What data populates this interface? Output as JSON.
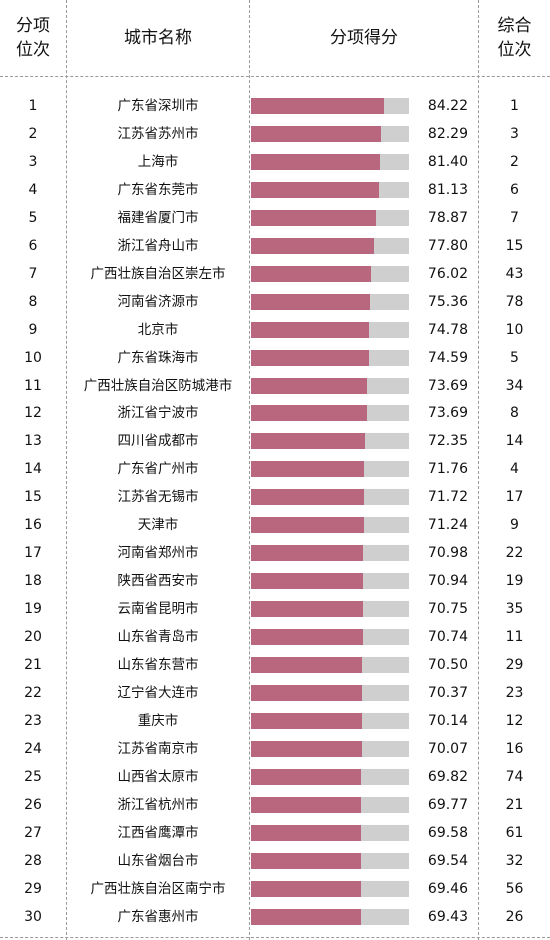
{
  "headers": {
    "rank": "分项\n位次",
    "city": "城市名称",
    "score": "分项得分",
    "composite": "综合\n位次"
  },
  "colors": {
    "bar": "#b8677f",
    "track": "#cfcfcf"
  },
  "chart_data": {
    "type": "bar",
    "orientation": "horizontal",
    "xlim": [
      0,
      100
    ],
    "grid": false,
    "categories": [
      "广东省深圳市",
      "江苏省苏州市",
      "上海市",
      "广东省东莞市",
      "福建省厦门市",
      "浙江省舟山市",
      "广西壮族自治区崇左市",
      "河南省济源市",
      "北京市",
      "广东省珠海市",
      "广西壮族自治区防城港市",
      "浙江省宁波市",
      "四川省成都市",
      "广东省广州市",
      "江苏省无锡市",
      "天津市",
      "河南省郑州市",
      "陕西省西安市",
      "云南省昆明市",
      "山东省青岛市",
      "山东省东营市",
      "辽宁省大连市",
      "重庆市",
      "江苏省南京市",
      "山西省太原市",
      "浙江省杭州市",
      "江西省鹰潭市",
      "山东省烟台市",
      "广西壮族自治区南宁市",
      "广东省惠州市"
    ],
    "values": [
      84.22,
      82.29,
      81.4,
      81.13,
      78.87,
      77.8,
      76.02,
      75.36,
      74.78,
      74.59,
      73.69,
      73.69,
      72.35,
      71.76,
      71.72,
      71.24,
      70.98,
      70.94,
      70.75,
      70.74,
      70.5,
      70.37,
      70.14,
      70.07,
      69.82,
      69.77,
      69.58,
      69.54,
      69.46,
      69.43
    ],
    "value_labels": [
      "84.22",
      "82.29",
      "81.40",
      "81.13",
      "78.87",
      "77.80",
      "76.02",
      "75.36",
      "74.78",
      "74.59",
      "73.69",
      "73.69",
      "72.35",
      "71.76",
      "71.72",
      "71.24",
      "70.98",
      "70.94",
      "70.75",
      "70.74",
      "70.50",
      "70.37",
      "70.14",
      "70.07",
      "69.82",
      "69.77",
      "69.58",
      "69.54",
      "69.46",
      "69.43"
    ],
    "ranks": [
      "1",
      "2",
      "3",
      "4",
      "5",
      "6",
      "7",
      "8",
      "9",
      "10",
      "11",
      "12",
      "13",
      "14",
      "15",
      "16",
      "17",
      "18",
      "19",
      "20",
      "21",
      "22",
      "23",
      "24",
      "25",
      "26",
      "27",
      "28",
      "29",
      "30"
    ],
    "composite_ranks": [
      "1",
      "3",
      "2",
      "6",
      "7",
      "15",
      "43",
      "78",
      "10",
      "5",
      "34",
      "8",
      "14",
      "4",
      "17",
      "9",
      "22",
      "19",
      "35",
      "11",
      "29",
      "23",
      "12",
      "16",
      "74",
      "21",
      "61",
      "32",
      "56",
      "26"
    ]
  }
}
